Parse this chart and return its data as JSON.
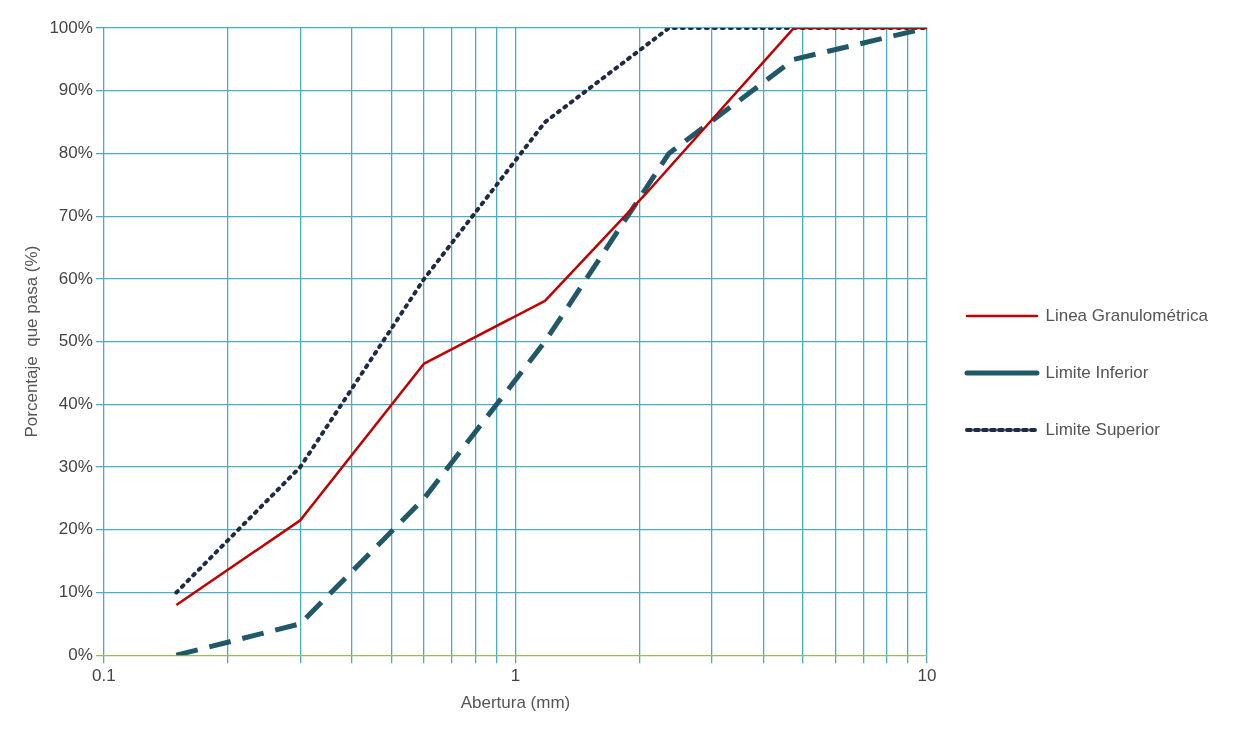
{
  "chart_data": {
    "type": "line",
    "xlabel": "Abertura (mm)",
    "ylabel": "Porcentaje  que pasa (%)",
    "log": "x",
    "xlim": [
      0.1,
      10
    ],
    "xticks": [
      {
        "value": 0.1,
        "label": "0.1"
      },
      {
        "value": 0.2,
        "label": null
      },
      {
        "value": 0.3,
        "label": null
      },
      {
        "value": 0.4,
        "label": null
      },
      {
        "value": 0.5,
        "label": null
      },
      {
        "value": 0.6,
        "label": null
      },
      {
        "value": 0.7,
        "label": null
      },
      {
        "value": 0.8,
        "label": null
      },
      {
        "value": 0.9,
        "label": null
      },
      {
        "value": 1,
        "label": "1"
      },
      {
        "value": 2,
        "label": null
      },
      {
        "value": 3,
        "label": null
      },
      {
        "value": 4,
        "label": null
      },
      {
        "value": 5,
        "label": null
      },
      {
        "value": 6,
        "label": null
      },
      {
        "value": 7,
        "label": null
      },
      {
        "value": 8,
        "label": null
      },
      {
        "value": 9,
        "label": null
      },
      {
        "value": 10,
        "label": "10"
      }
    ],
    "ylim": [
      0,
      100
    ],
    "yticks": [
      {
        "value": 0,
        "label": "0%"
      },
      {
        "value": 10,
        "label": "10%"
      },
      {
        "value": 20,
        "label": "20%"
      },
      {
        "value": 30,
        "label": "30%"
      },
      {
        "value": 40,
        "label": "40%"
      },
      {
        "value": 50,
        "label": "50%"
      },
      {
        "value": 60,
        "label": "60%"
      },
      {
        "value": 70,
        "label": "70%"
      },
      {
        "value": 80,
        "label": "80%"
      },
      {
        "value": 90,
        "label": "90%"
      },
      {
        "value": 100,
        "label": "100%"
      }
    ],
    "grid": true,
    "legend": "right",
    "marker": "none",
    "series": [
      {
        "name": "Linea Granulométrica",
        "color": "#c00000",
        "line_style": "solid",
        "x": [
          0.15,
          0.3,
          0.6,
          1.18,
          2.07,
          4.75,
          10
        ],
        "values": [
          8,
          21.5,
          46.5,
          56.5,
          73.5,
          100,
          100
        ]
      },
      {
        "name": "Limite Inferior",
        "color": "#215868",
        "line_style": "dashed",
        "x": [
          0.15,
          0.3,
          0.6,
          1.18,
          2.36,
          4.75,
          10
        ],
        "values": [
          0,
          5,
          25,
          50,
          80,
          95,
          100
        ]
      },
      {
        "name": "Limite Superior",
        "color": "#1f2a44",
        "line_style": "dotted",
        "x": [
          0.15,
          0.3,
          0.6,
          1.18,
          2.36,
          10
        ],
        "values": [
          10,
          30,
          60,
          85,
          100,
          100
        ]
      }
    ]
  }
}
